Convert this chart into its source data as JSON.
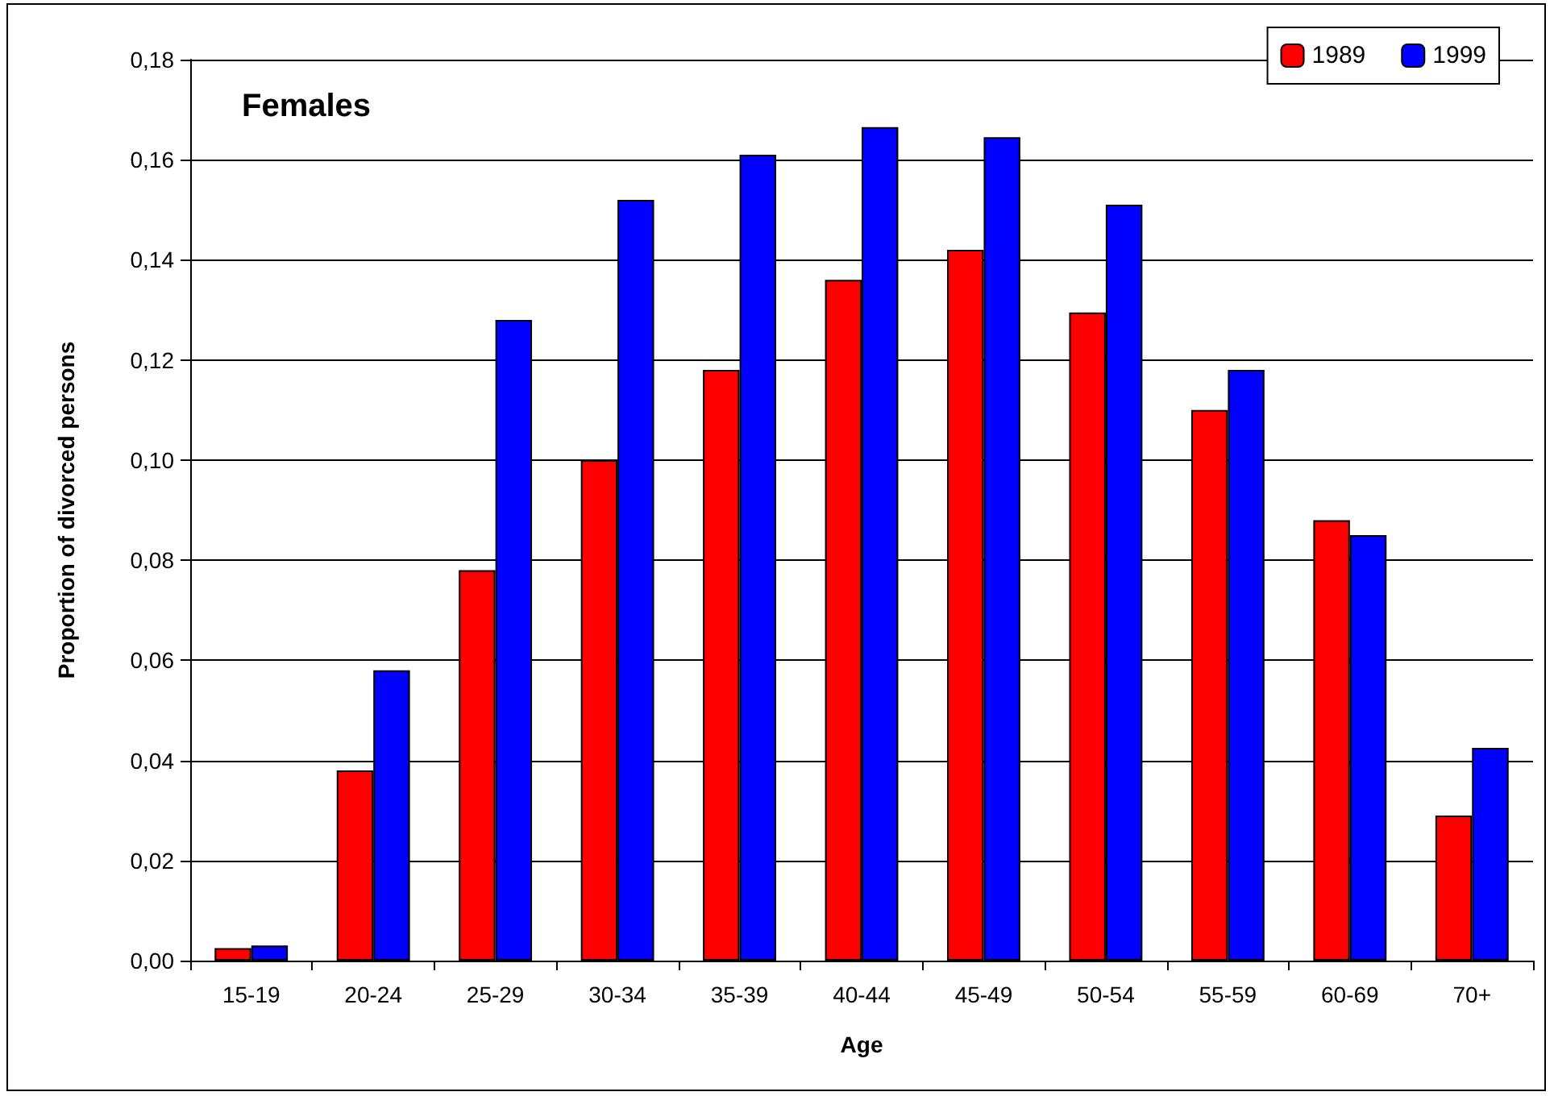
{
  "chart_data": {
    "type": "bar",
    "title": "Females",
    "xlabel": "Age",
    "ylabel": "Proportion of divorced persons",
    "categories": [
      "15-19",
      "20-24",
      "25-29",
      "30-34",
      "35-39",
      "40-44",
      "45-49",
      "50-54",
      "55-59",
      "60-69",
      "70+"
    ],
    "series": [
      {
        "name": "1989",
        "color": "#ff0000",
        "values": [
          0.0025,
          0.038,
          0.078,
          0.1,
          0.118,
          0.136,
          0.142,
          0.1295,
          0.11,
          0.088,
          0.029
        ]
      },
      {
        "name": "1999",
        "color": "#0000ff",
        "values": [
          0.003,
          0.058,
          0.128,
          0.152,
          0.161,
          0.1665,
          0.1645,
          0.151,
          0.118,
          0.085,
          0.0425
        ]
      }
    ],
    "ylim": [
      0,
      0.18
    ],
    "yticks": [
      {
        "value": 0,
        "label": "0,00"
      },
      {
        "value": 0.02,
        "label": "0,02"
      },
      {
        "value": 0.04,
        "label": "0,04"
      },
      {
        "value": 0.06,
        "label": "0,06"
      },
      {
        "value": 0.08,
        "label": "0,08"
      },
      {
        "value": 0.1,
        "label": "0,10"
      },
      {
        "value": 0.12,
        "label": "0,12"
      },
      {
        "value": 0.14,
        "label": "0,14"
      },
      {
        "value": 0.16,
        "label": "0,16"
      },
      {
        "value": 0.18,
        "label": "0,18"
      }
    ],
    "grid": "y",
    "legend": "top right"
  }
}
